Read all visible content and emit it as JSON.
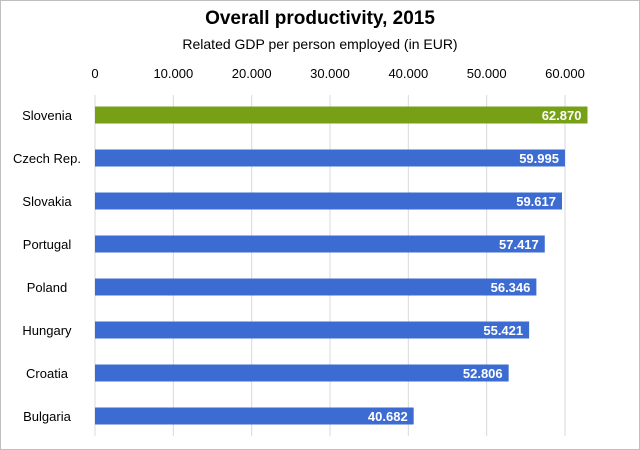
{
  "chart_data": {
    "type": "bar",
    "orientation": "horizontal",
    "title": "Overall productivity, 2015",
    "subtitle": "Related GDP per person employed (in EUR)",
    "xlabel": "",
    "ylabel": "",
    "xlim": [
      0,
      60000
    ],
    "x_ticks": [
      0,
      10000,
      20000,
      30000,
      40000,
      50000,
      60000
    ],
    "x_tick_labels": [
      "0",
      "10.000",
      "20.000",
      "30.000",
      "40.000",
      "50.000",
      "60.000"
    ],
    "x_axis_position": "top",
    "grid": true,
    "legend": "none",
    "categories": [
      "Slovenia",
      "Czech Rep.",
      "Slovakia",
      "Portugal",
      "Poland",
      "Hungary",
      "Croatia",
      "Bulgaria"
    ],
    "values": [
      62870,
      59995,
      59617,
      57417,
      56346,
      55421,
      52806,
      40682
    ],
    "value_labels": [
      "62.870",
      "59.995",
      "59.617",
      "57.417",
      "56.346",
      "55.421",
      "52.806",
      "40.682"
    ],
    "highlight_category": "Slovenia",
    "colors": {
      "highlight": "#77a017",
      "default": "#3c6bd1",
      "grid": "#d9d9d9"
    }
  }
}
